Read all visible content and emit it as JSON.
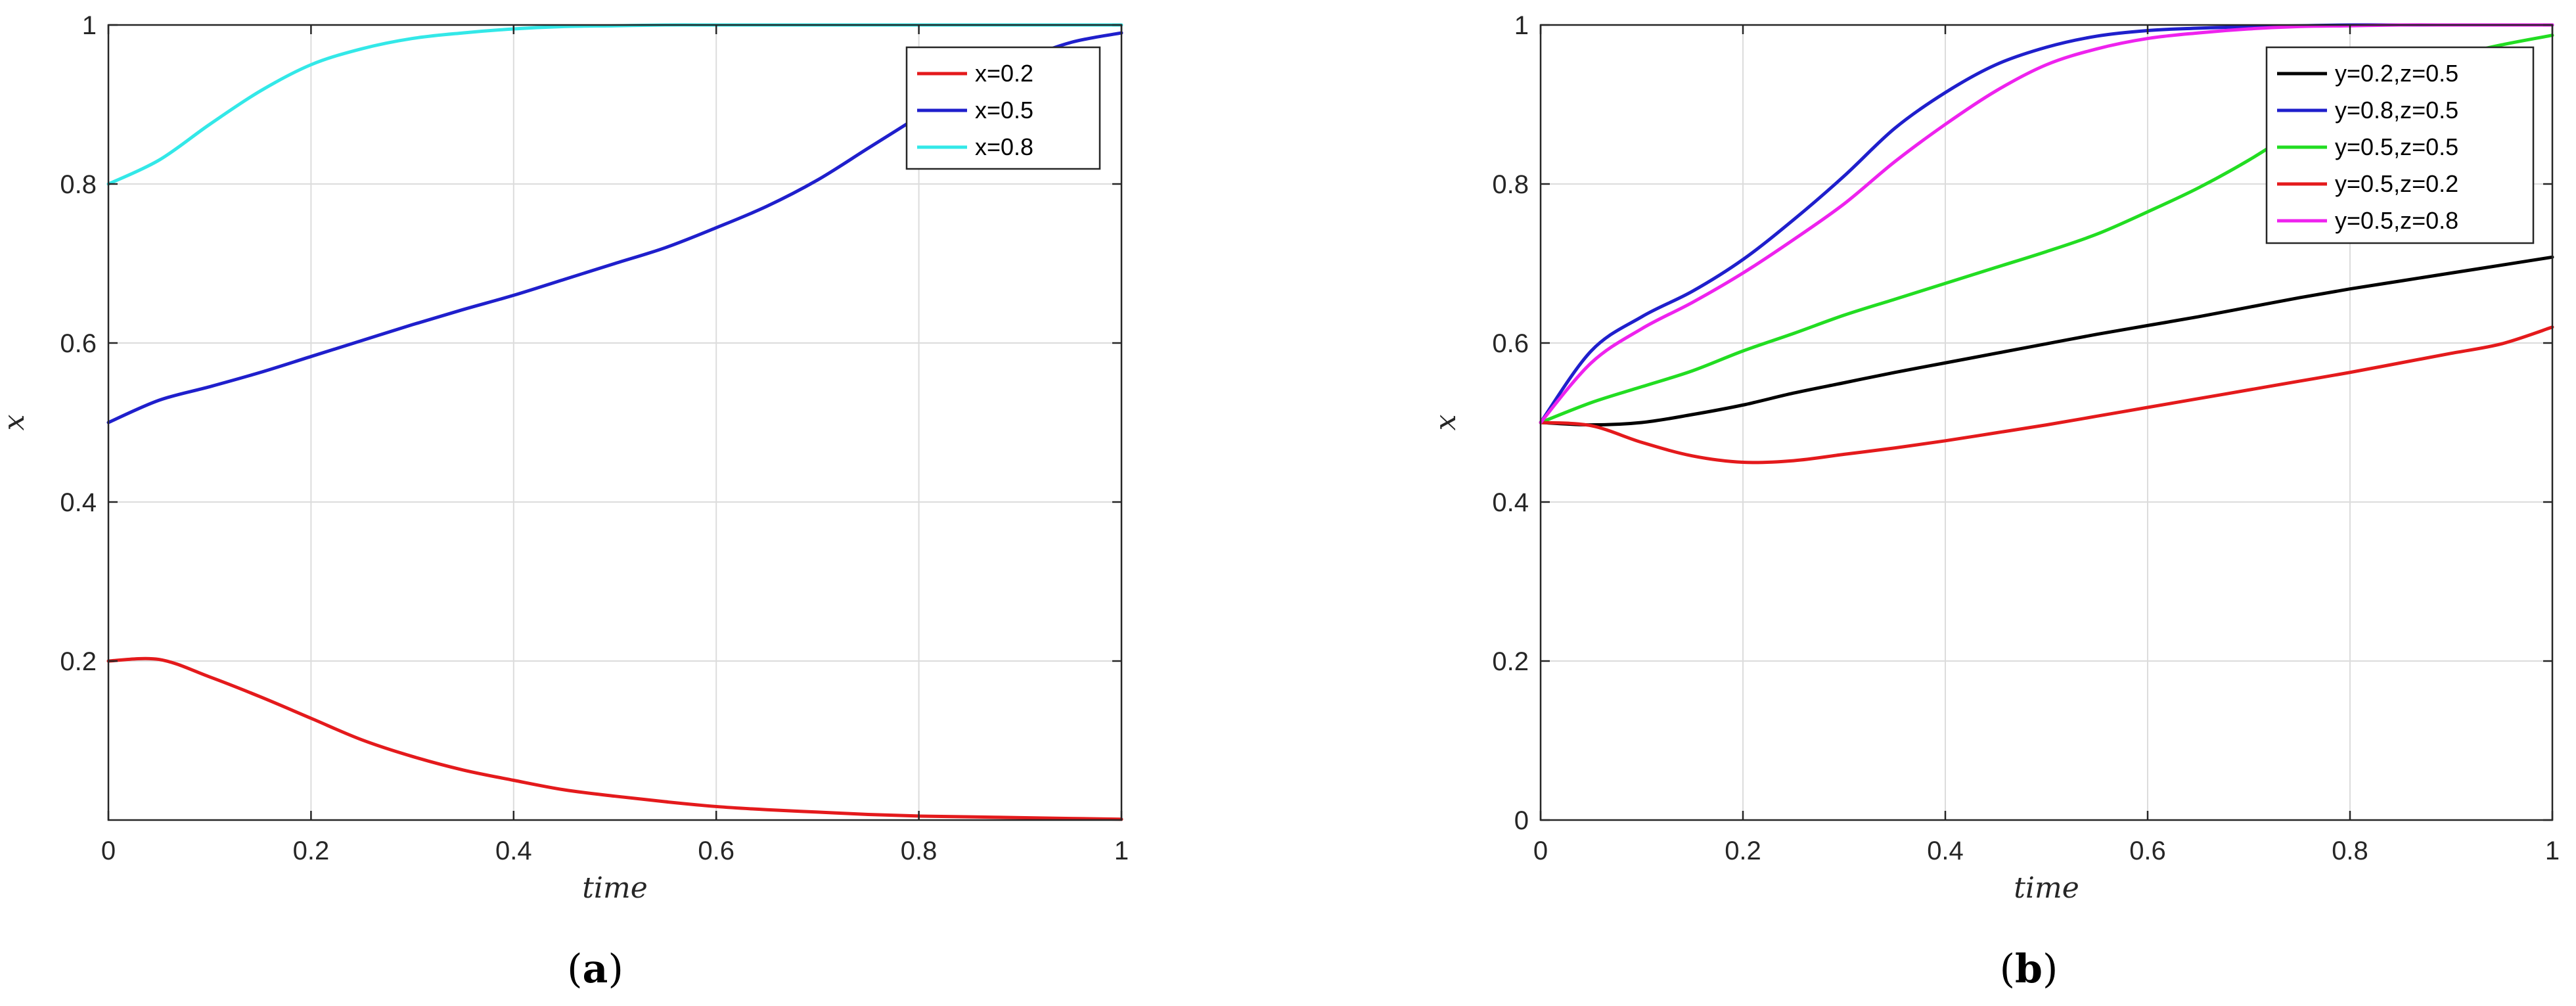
{
  "chart_data": [
    {
      "type": "line",
      "panel_label": {
        "open": "(",
        "letter": "a",
        "close": ")"
      },
      "xlabel": "time",
      "ylabel": "x",
      "xlim": [
        0,
        1
      ],
      "ylim": [
        0,
        1
      ],
      "xticks": [
        0,
        0.2,
        0.4,
        0.6,
        0.8,
        1
      ],
      "xtick_labels": [
        "0",
        "0.2",
        "0.4",
        "0.6",
        "0.8",
        "1"
      ],
      "yticks": [
        0.2,
        0.4,
        0.6,
        0.8,
        1
      ],
      "ytick_labels": [
        "0.2",
        "0.4",
        "0.6",
        "0.8",
        "1"
      ],
      "grid": true,
      "legend_position": "top-right",
      "x": [
        0,
        0.05,
        0.1,
        0.15,
        0.2,
        0.25,
        0.3,
        0.35,
        0.4,
        0.45,
        0.5,
        0.55,
        0.6,
        0.65,
        0.7,
        0.75,
        0.8,
        0.85,
        0.9,
        0.95,
        1
      ],
      "series": [
        {
          "name": "x=0.2",
          "color": "#e41a1c",
          "values": [
            0.2,
            0.202,
            0.18,
            0.155,
            0.128,
            0.101,
            0.08,
            0.063,
            0.05,
            0.038,
            0.03,
            0.023,
            0.017,
            0.013,
            0.01,
            0.007,
            0.005,
            0.004,
            0.003,
            0.002,
            0.001
          ]
        },
        {
          "name": "x=0.5",
          "color": "#1f1fcc",
          "values": [
            0.5,
            0.528,
            0.545,
            0.563,
            0.583,
            0.603,
            0.623,
            0.642,
            0.66,
            0.68,
            0.7,
            0.72,
            0.745,
            0.772,
            0.805,
            0.845,
            0.885,
            0.925,
            0.955,
            0.978,
            0.99
          ]
        },
        {
          "name": "x=0.8",
          "color": "#33e8e8",
          "values": [
            0.8,
            0.83,
            0.875,
            0.917,
            0.95,
            0.97,
            0.983,
            0.99,
            0.995,
            0.998,
            0.999,
            1,
            1,
            1,
            1,
            1,
            1,
            1,
            1,
            1,
            1
          ]
        }
      ]
    },
    {
      "type": "line",
      "panel_label": {
        "open": "(",
        "letter": "b",
        "close": ")"
      },
      "xlabel": "time",
      "ylabel": "x",
      "xlim": [
        0,
        1
      ],
      "ylim": [
        0,
        1
      ],
      "xticks": [
        0,
        0.2,
        0.4,
        0.6,
        0.8,
        1
      ],
      "xtick_labels": [
        "0",
        "0.2",
        "0.4",
        "0.6",
        "0.8",
        "1"
      ],
      "yticks": [
        0,
        0.2,
        0.4,
        0.6,
        0.8,
        1
      ],
      "ytick_labels": [
        "0",
        "0.2",
        "0.4",
        "0.6",
        "0.8",
        "1"
      ],
      "grid": true,
      "legend_position": "top-right",
      "x": [
        0,
        0.05,
        0.1,
        0.15,
        0.2,
        0.25,
        0.3,
        0.35,
        0.4,
        0.45,
        0.5,
        0.55,
        0.6,
        0.65,
        0.7,
        0.75,
        0.8,
        0.85,
        0.9,
        0.95,
        1
      ],
      "series": [
        {
          "name": "y=0.2,z=0.5",
          "color": "#000000",
          "values": [
            0.5,
            0.497,
            0.5,
            0.51,
            0.522,
            0.537,
            0.55,
            0.563,
            0.575,
            0.587,
            0.599,
            0.611,
            0.622,
            0.633,
            0.645,
            0.657,
            0.668,
            0.678,
            0.688,
            0.698,
            0.708
          ]
        },
        {
          "name": "y=0.8,z=0.5",
          "color": "#1f1fcc",
          "values": [
            0.5,
            0.59,
            0.633,
            0.665,
            0.705,
            0.755,
            0.81,
            0.87,
            0.915,
            0.95,
            0.972,
            0.986,
            0.993,
            0.996,
            0.998,
            0.999,
            1,
            1,
            1,
            1,
            1
          ]
        },
        {
          "name": "y=0.5,z=0.5",
          "color": "#22dd22",
          "values": [
            0.5,
            0.525,
            0.545,
            0.565,
            0.59,
            0.612,
            0.635,
            0.655,
            0.675,
            0.695,
            0.715,
            0.737,
            0.765,
            0.795,
            0.83,
            0.87,
            0.91,
            0.94,
            0.96,
            0.975,
            0.987
          ]
        },
        {
          "name": "y=0.5,z=0.2",
          "color": "#e41a1c",
          "values": [
            0.5,
            0.496,
            0.475,
            0.458,
            0.45,
            0.452,
            0.46,
            0.468,
            0.477,
            0.487,
            0.497,
            0.508,
            0.519,
            0.53,
            0.541,
            0.552,
            0.563,
            0.575,
            0.587,
            0.599,
            0.62
          ]
        },
        {
          "name": "y=0.5,z=0.8",
          "color": "#ee22ee",
          "values": [
            0.5,
            0.575,
            0.618,
            0.651,
            0.688,
            0.73,
            0.775,
            0.828,
            0.875,
            0.917,
            0.95,
            0.97,
            0.983,
            0.99,
            0.995,
            0.998,
            0.999,
            1,
            1,
            1,
            1
          ]
        }
      ]
    }
  ]
}
